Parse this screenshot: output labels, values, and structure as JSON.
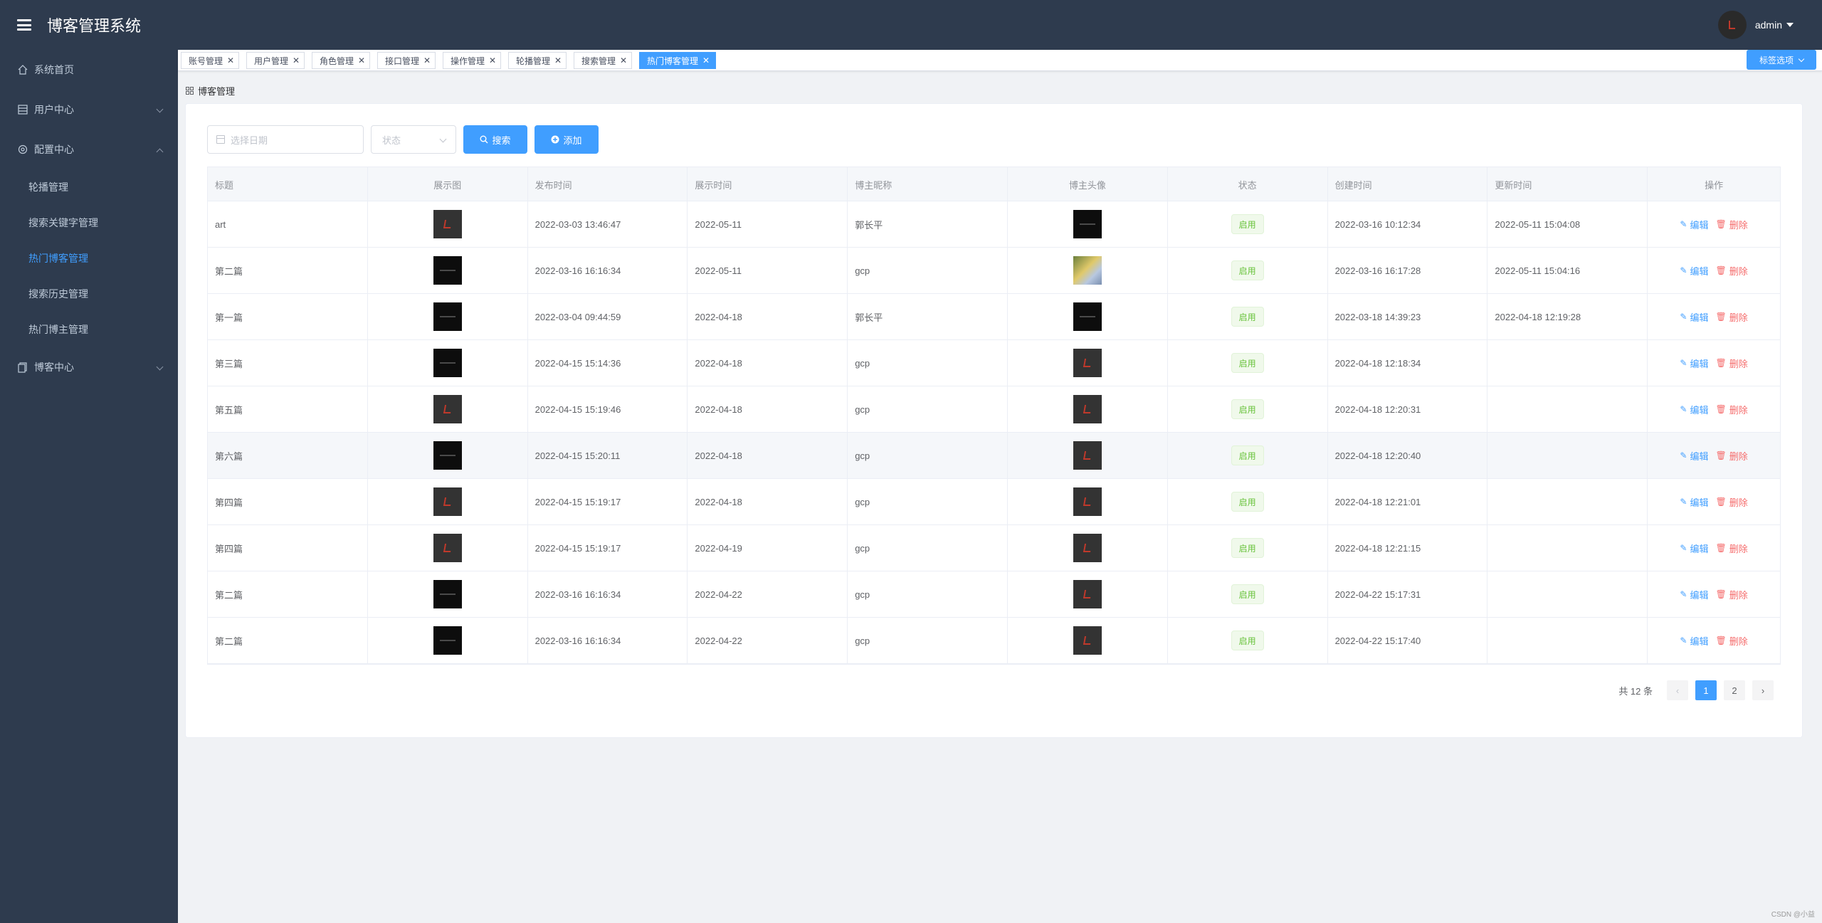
{
  "app": {
    "title": "博客管理系统",
    "user": "admin"
  },
  "sidebar": {
    "home": "系统首页",
    "user_center": "用户中心",
    "config_center": "配置中心",
    "config_items": [
      "轮播管理",
      "搜索关键字管理",
      "热门博客管理",
      "搜索历史管理",
      "热门博主管理"
    ],
    "blog_center": "博客中心"
  },
  "tabs": {
    "items": [
      "账号管理",
      "用户管理",
      "角色管理",
      "接口管理",
      "操作管理",
      "轮播管理",
      "搜索管理",
      "热门博客管理"
    ],
    "options_label": "标签选项"
  },
  "breadcrumb": "博客管理",
  "filters": {
    "date_placeholder": "选择日期",
    "status_placeholder": "状态",
    "search_label": "搜索",
    "add_label": "添加"
  },
  "table": {
    "headers": [
      "标题",
      "展示图",
      "发布时间",
      "展示时间",
      "博主昵称",
      "博主头像",
      "状态",
      "创建时间",
      "更新时间",
      "操作"
    ],
    "edit_label": "编辑",
    "delete_label": "删除",
    "rows": [
      {
        "title": "art",
        "publish": "2022-03-03 13:46:47",
        "display": "2022-05-11",
        "author": "郭长平",
        "status": "启用",
        "created": "2022-03-16 10:12:34",
        "updated": "2022-05-11 15:04:08"
      },
      {
        "title": "第二篇",
        "publish": "2022-03-16 16:16:34",
        "display": "2022-05-11",
        "author": "gcp",
        "status": "启用",
        "created": "2022-03-16 16:17:28",
        "updated": "2022-05-11 15:04:16"
      },
      {
        "title": "第一篇",
        "publish": "2022-03-04 09:44:59",
        "display": "2022-04-18",
        "author": "郭长平",
        "status": "启用",
        "created": "2022-03-18 14:39:23",
        "updated": "2022-04-18 12:19:28"
      },
      {
        "title": "第三篇",
        "publish": "2022-04-15 15:14:36",
        "display": "2022-04-18",
        "author": "gcp",
        "status": "启用",
        "created": "2022-04-18 12:18:34",
        "updated": ""
      },
      {
        "title": "第五篇",
        "publish": "2022-04-15 15:19:46",
        "display": "2022-04-18",
        "author": "gcp",
        "status": "启用",
        "created": "2022-04-18 12:20:31",
        "updated": ""
      },
      {
        "title": "第六篇",
        "publish": "2022-04-15 15:20:11",
        "display": "2022-04-18",
        "author": "gcp",
        "status": "启用",
        "created": "2022-04-18 12:20:40",
        "updated": ""
      },
      {
        "title": "第四篇",
        "publish": "2022-04-15 15:19:17",
        "display": "2022-04-18",
        "author": "gcp",
        "status": "启用",
        "created": "2022-04-18 12:21:01",
        "updated": ""
      },
      {
        "title": "第四篇",
        "publish": "2022-04-15 15:19:17",
        "display": "2022-04-19",
        "author": "gcp",
        "status": "启用",
        "created": "2022-04-18 12:21:15",
        "updated": ""
      },
      {
        "title": "第二篇",
        "publish": "2022-03-16 16:16:34",
        "display": "2022-04-22",
        "author": "gcp",
        "status": "启用",
        "created": "2022-04-22 15:17:31",
        "updated": ""
      },
      {
        "title": "第二篇",
        "publish": "2022-03-16 16:16:34",
        "display": "2022-04-22",
        "author": "gcp",
        "status": "启用",
        "created": "2022-04-22 15:17:40",
        "updated": ""
      }
    ]
  },
  "pagination": {
    "total_label": "共 12 条",
    "pages": [
      "1",
      "2"
    ],
    "current": "1",
    "prev": "‹",
    "next": "›"
  },
  "watermark": "CSDN @小益",
  "colors": {
    "primary": "#409eff",
    "sidebar_bg": "#2e3b4e",
    "success": "#67c23a",
    "danger": "#f56c6c"
  }
}
